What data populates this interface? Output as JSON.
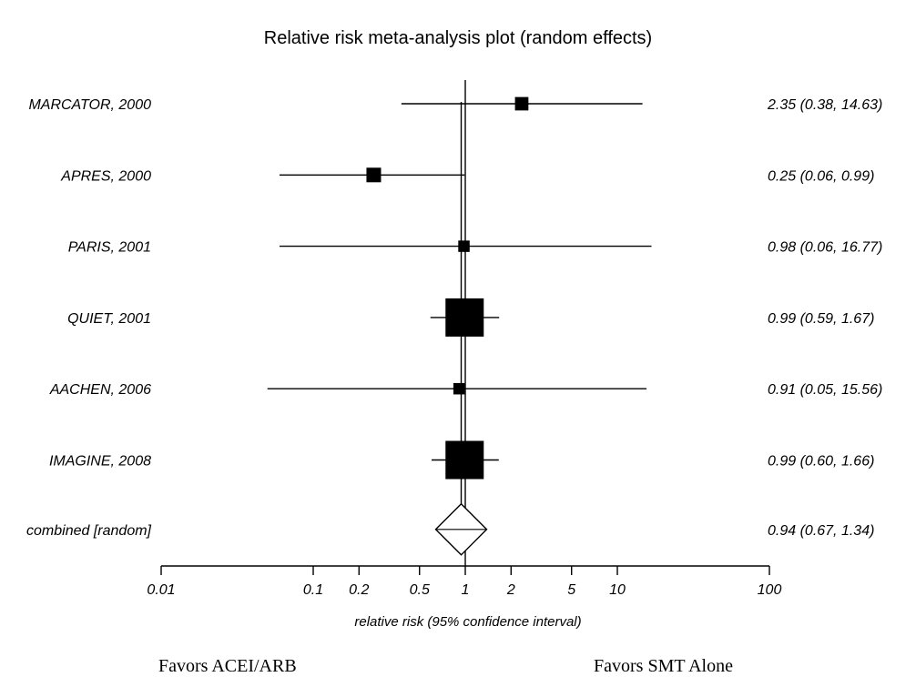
{
  "chart_data": {
    "type": "forest",
    "title": "Relative risk meta-analysis plot (random effects)",
    "xlabel": "relative risk (95% confidence interval)",
    "x_scale": "log",
    "xlim": [
      0.01,
      100
    ],
    "ticks": [
      {
        "value": 0.01,
        "label": "0.01"
      },
      {
        "value": 0.1,
        "label": "0.1"
      },
      {
        "value": 0.2,
        "label": "0.2"
      },
      {
        "value": 0.5,
        "label": "0.5"
      },
      {
        "value": 1,
        "label": "1"
      },
      {
        "value": 2,
        "label": "2"
      },
      {
        "value": 5,
        "label": "5"
      },
      {
        "value": 10,
        "label": "10"
      },
      {
        "value": 100,
        "label": "100"
      }
    ],
    "reference_line": 1,
    "pooled_line": 0.94,
    "studies": [
      {
        "name": "MARCATOR, 2000",
        "rr": 2.35,
        "lower": 0.38,
        "upper": 14.63,
        "weight": 0.08,
        "label": "2.35 (0.38, 14.63)"
      },
      {
        "name": "APRES, 2000",
        "rr": 0.25,
        "lower": 0.06,
        "upper": 0.99,
        "weight": 0.1,
        "label": "0.25 (0.06, 0.99)"
      },
      {
        "name": "PARIS, 2001",
        "rr": 0.98,
        "lower": 0.06,
        "upper": 16.77,
        "weight": 0.05,
        "label": "0.98 (0.06, 16.77)"
      },
      {
        "name": "QUIET, 2001",
        "rr": 0.99,
        "lower": 0.59,
        "upper": 1.67,
        "weight": 1.0,
        "label": "0.99 (0.59, 1.67)"
      },
      {
        "name": "AACHEN, 2006",
        "rr": 0.91,
        "lower": 0.05,
        "upper": 15.56,
        "weight": 0.05,
        "label": "0.91 (0.05, 15.56)"
      },
      {
        "name": "IMAGINE, 2008",
        "rr": 0.99,
        "lower": 0.6,
        "upper": 1.66,
        "weight": 1.0,
        "label": "0.99 (0.60, 1.66)"
      }
    ],
    "combined": {
      "name": "combined [random]",
      "rr": 0.94,
      "lower": 0.67,
      "upper": 1.34,
      "label": "0.94 (0.67, 1.34)"
    },
    "favors_left": "Favors ACEI/ARB",
    "favors_right": "Favors SMT Alone"
  }
}
